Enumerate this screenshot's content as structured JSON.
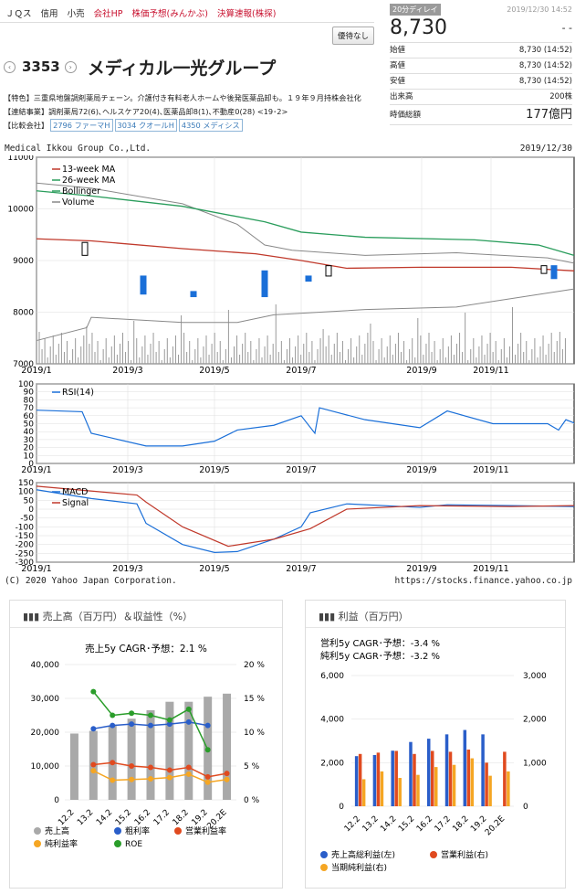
{
  "nav": {
    "items": [
      "ＪＱス",
      "信用",
      "小売"
    ],
    "links": [
      "会社HP",
      "株価予想(みんかぶ)",
      "決算速報(株探)"
    ],
    "favorite": "優待なし"
  },
  "stock": {
    "code": "3353",
    "name": "メディカル一光グループ",
    "feature": "【特色】三重県地盤調剤薬局チェーン。介護付き有料老人ホームや後発医薬品卸も。１９年９月持株会社化",
    "business": "【連結事業】調剤薬局72(6)､ヘルスケア20(4)､医薬品卸8(1)､不動産0(28) <19･2>",
    "compare_label": "【比較会社】",
    "compare": [
      "2796 ファーマH",
      "3034 クオールH",
      "4350 メディシス"
    ]
  },
  "quote": {
    "delay": "20分ディレイ",
    "time": "2019/12/30 14:52",
    "price": "8,730",
    "change": "- -",
    "rows": [
      {
        "label": "始値",
        "value": "8,730 (14:52)"
      },
      {
        "label": "高値",
        "value": "8,730 (14:52)"
      },
      {
        "label": "安値",
        "value": "8,730 (14:52)"
      },
      {
        "label": "出来高",
        "value": "200株"
      }
    ],
    "cap_label": "時価総額",
    "cap_value": "177億円"
  },
  "chart_header": {
    "left": "Medical Ikkou Group Co.,Ltd.",
    "right": "2019/12/30",
    "footer_left": "(C) 2020 Yahoo Japan Corporation.",
    "footer_right": "https://stocks.finance.yahoo.co.jp"
  },
  "chart_data": [
    {
      "type": "line",
      "title": "",
      "legend": [
        "13-week MA",
        "26-week MA",
        "Bollinger",
        "Volume"
      ],
      "x_ticks": [
        "2019/1",
        "2019/3",
        "2019/5",
        "2019/7",
        "2019/9",
        "2019/11"
      ],
      "y_ticks": [
        7000,
        8000,
        9000,
        10000,
        11000
      ],
      "ylim": [
        7000,
        11000
      ]
    },
    {
      "type": "line",
      "legend": [
        "RSI(14)"
      ],
      "y_ticks": [
        0,
        10,
        20,
        30,
        40,
        50,
        60,
        70,
        80,
        90,
        100
      ],
      "ylim": [
        0,
        100
      ],
      "x_ticks": [
        "2019/1",
        "2019/3",
        "2019/5",
        "2019/7",
        "2019/9",
        "2019/11"
      ]
    },
    {
      "type": "line",
      "legend": [
        "MACD",
        "Signal"
      ],
      "y_ticks": [
        -300,
        -250,
        -200,
        -150,
        -100,
        -50,
        0,
        50,
        100,
        150
      ],
      "ylim": [
        -300,
        150
      ],
      "x_ticks": [
        "2019/1",
        "2019/3",
        "2019/5",
        "2019/7",
        "2019/9",
        "2019/11"
      ]
    },
    {
      "type": "bar",
      "title": "売上高（百万円）＆収益性（%）",
      "subtitle": "売上5y CAGR･予想：2.1 %",
      "categories": [
        "12.2",
        "13.2",
        "14.2",
        "15.2",
        "16.2",
        "17.2",
        "18.2",
        "19.2",
        "20.2E"
      ],
      "y_left": [
        0,
        10000,
        20000,
        30000,
        40000
      ],
      "y_right": [
        "0 %",
        "5 %",
        "10 %",
        "15 %",
        "20 %"
      ],
      "series": [
        {
          "name": "売上高",
          "values": [
            19600,
            20400,
            22000,
            24000,
            26500,
            29000,
            29000,
            30500,
            31400
          ]
        },
        {
          "name": "粗利率",
          "values": [
            null,
            10.5,
            11.0,
            11.2,
            11.0,
            11.2,
            11.5,
            11.0,
            null
          ]
        },
        {
          "name": "営業利益率",
          "values": [
            null,
            5.2,
            5.5,
            5.0,
            4.8,
            4.4,
            4.8,
            3.4,
            3.9
          ]
        },
        {
          "name": "純利益率",
          "values": [
            null,
            4.3,
            2.9,
            3.0,
            3.1,
            3.3,
            3.8,
            2.6,
            3.0
          ]
        },
        {
          "name": "ROE",
          "values": [
            null,
            16.0,
            12.5,
            12.8,
            12.5,
            11.8,
            13.4,
            7.4,
            null
          ]
        }
      ]
    },
    {
      "type": "bar",
      "title": "利益（百万円）",
      "subtitle_lines": [
        "営利5y CAGR･予想：-3.4 %",
        "純利5y CAGR･予想：-3.2 %"
      ],
      "categories": [
        "12.2",
        "13.2",
        "14.2",
        "15.2",
        "16.2",
        "17.2",
        "18.2",
        "19.2",
        "20.2E"
      ],
      "y_left": [
        0,
        2000,
        4000,
        6000
      ],
      "y_right": [
        0,
        1000,
        2000,
        3000
      ],
      "series": [
        {
          "name": "売上高総利益(左)",
          "values": [
            2300,
            2350,
            2550,
            2950,
            3100,
            3300,
            3500,
            3300,
            null
          ]
        },
        {
          "name": "営業利益(右)",
          "values": [
            1200,
            1230,
            1270,
            1200,
            1270,
            1250,
            1300,
            1000,
            1250
          ]
        },
        {
          "name": "当期純利益(右)",
          "values": [
            620,
            800,
            650,
            720,
            900,
            950,
            1100,
            700,
            800
          ]
        }
      ]
    }
  ]
}
